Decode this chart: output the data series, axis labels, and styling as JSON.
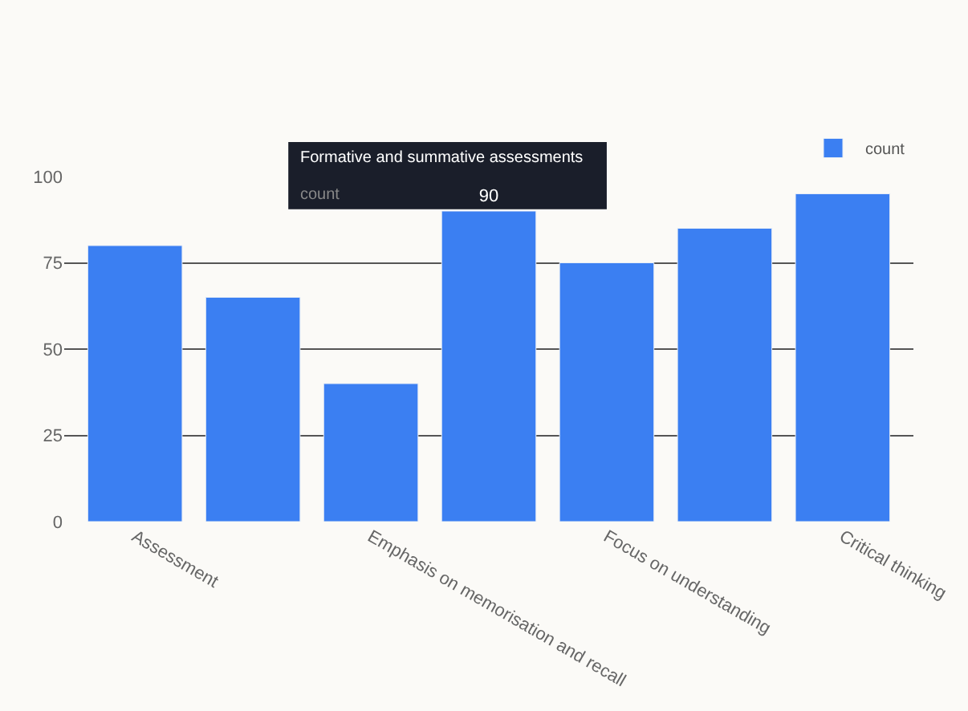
{
  "chart_data": {
    "type": "bar",
    "categories": [
      "Assessment",
      null,
      "Emphasis on memorisation and recall",
      null,
      "Focus on understanding",
      null,
      "Critical thinking"
    ],
    "series": [
      {
        "name": "count",
        "color": "#3b7ff2",
        "values": [
          80,
          65,
          40,
          90,
          75,
          85,
          95
        ],
        "value_labels": [
          null,
          null,
          null,
          "90",
          null,
          null,
          null
        ]
      }
    ],
    "annotations": [
      "Formative and summative assessments"
    ],
    "ylim": [
      0,
      100
    ],
    "yticks": [
      0,
      25,
      50,
      75,
      100
    ],
    "grid": "y",
    "legend": "top right"
  }
}
